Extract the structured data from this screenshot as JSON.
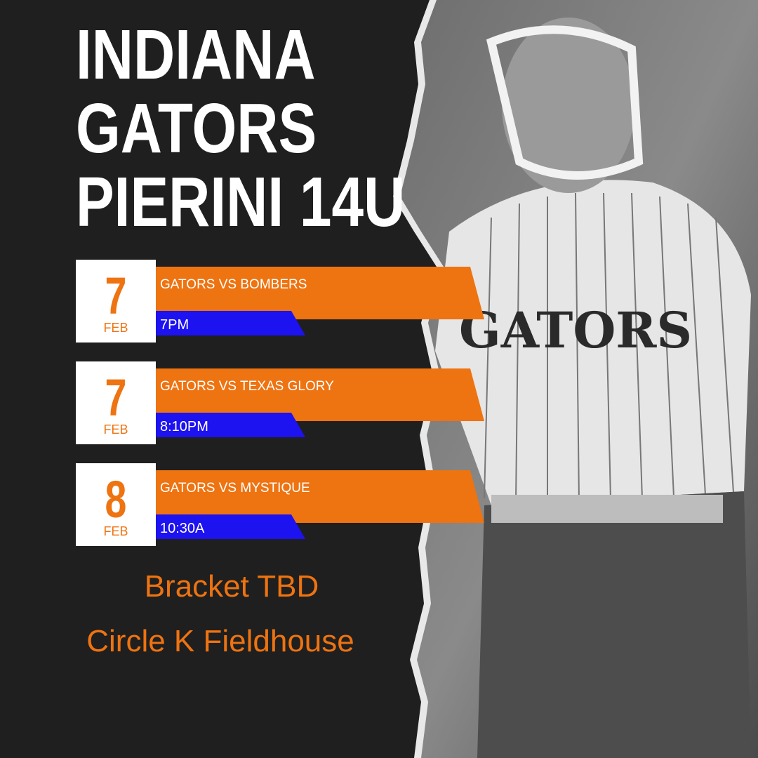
{
  "title": {
    "lines": [
      "INDIANA",
      "GATORS",
      "PIERINI 14U"
    ]
  },
  "games": [
    {
      "day": "7",
      "month": "FEB",
      "matchup": "GATORS VS BOMBERS",
      "time": "7PM"
    },
    {
      "day": "7",
      "month": "FEB",
      "matchup": "GATORS VS TEXAS GLORY",
      "time": "8:10PM"
    },
    {
      "day": "8",
      "month": "FEB",
      "matchup": "GATORS VS MYSTIQUE",
      "time": "10:30A"
    }
  ],
  "footer": {
    "lines": [
      "Bracket TBD",
      "Circle K Fieldhouse"
    ]
  },
  "photo": {
    "jersey_text": "GATORS"
  }
}
